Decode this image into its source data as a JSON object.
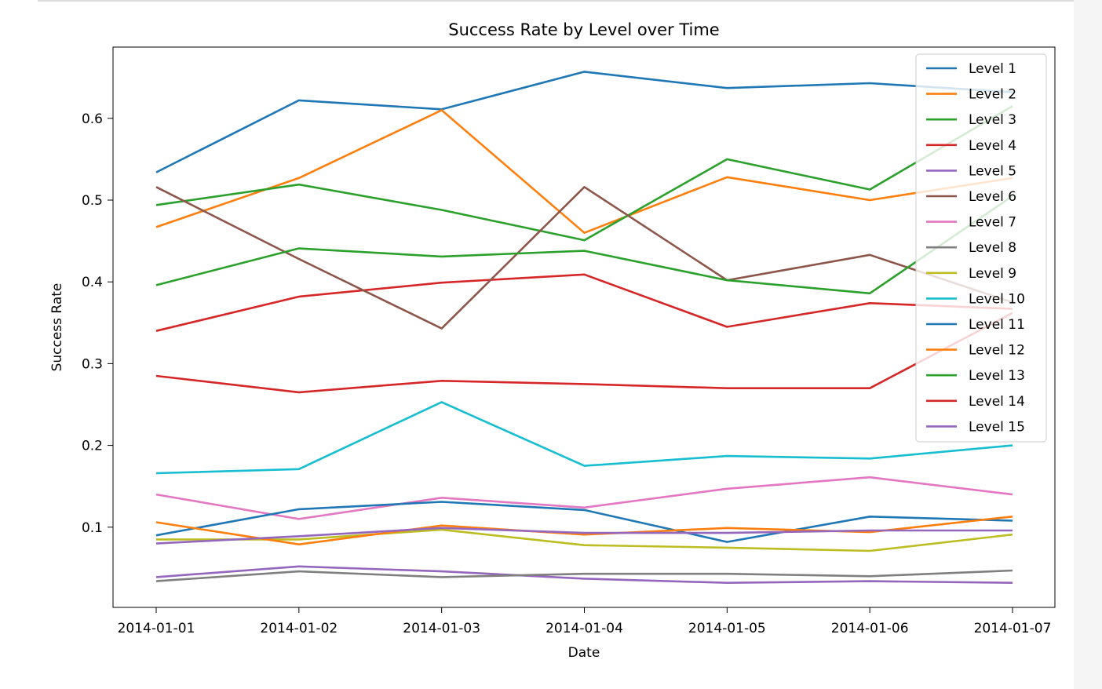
{
  "chart_data": {
    "type": "line",
    "title": "Success Rate by Level over Time",
    "xlabel": "Date",
    "ylabel": "Success Rate",
    "x": [
      "2014-01-01",
      "2014-01-02",
      "2014-01-03",
      "2014-01-04",
      "2014-01-05",
      "2014-01-06",
      "2014-01-07"
    ],
    "xlim": [
      "2014-01-01",
      "2014-01-07"
    ],
    "ylim": [
      0.0,
      0.68
    ],
    "yticks": [
      0.1,
      0.2,
      0.3,
      0.4,
      0.5,
      0.6
    ],
    "grid": false,
    "legend_position": "top-right",
    "series": [
      {
        "name": "Level 1",
        "color": "#1f77b4",
        "values": [
          0.534,
          0.622,
          0.611,
          0.657,
          0.637,
          0.643,
          0.632
        ]
      },
      {
        "name": "Level 2",
        "color": "#ff7f0e",
        "values": [
          0.467,
          0.527,
          0.61,
          0.46,
          0.528,
          0.5,
          0.527
        ]
      },
      {
        "name": "Level 3",
        "color": "#2ca02c",
        "values": [
          0.494,
          0.519,
          0.488,
          0.451,
          0.55,
          0.513,
          0.615
        ]
      },
      {
        "name": "Level 4",
        "color": "#d62728",
        "values": [
          0.34,
          0.382,
          0.399,
          0.409,
          0.345,
          0.374,
          0.367
        ]
      },
      {
        "name": "Level 5",
        "color": "#9467bd",
        "values": [
          0.039,
          0.052,
          0.046,
          0.037,
          0.032,
          0.034,
          0.032
        ]
      },
      {
        "name": "Level 6",
        "color": "#8c564b",
        "values": [
          0.516,
          0.428,
          0.343,
          0.516,
          0.402,
          0.433,
          0.375
        ]
      },
      {
        "name": "Level 7",
        "color": "#e377c2",
        "values": [
          0.14,
          0.11,
          0.136,
          0.124,
          0.147,
          0.161,
          0.14
        ]
      },
      {
        "name": "Level 8",
        "color": "#7f7f7f",
        "values": [
          0.034,
          0.046,
          0.039,
          0.043,
          0.043,
          0.04,
          0.047
        ]
      },
      {
        "name": "Level 9",
        "color": "#bcbd22",
        "values": [
          0.085,
          0.085,
          0.097,
          0.078,
          0.075,
          0.071,
          0.091
        ]
      },
      {
        "name": "Level 10",
        "color": "#17becf",
        "values": [
          0.166,
          0.171,
          0.253,
          0.175,
          0.187,
          0.184,
          0.2
        ]
      },
      {
        "name": "Level 11",
        "color": "#1f77b4",
        "values": [
          0.09,
          0.122,
          0.131,
          0.121,
          0.082,
          0.113,
          0.108
        ]
      },
      {
        "name": "Level 12",
        "color": "#ff7f0e",
        "values": [
          0.106,
          0.079,
          0.102,
          0.091,
          0.099,
          0.094,
          0.113
        ]
      },
      {
        "name": "Level 13",
        "color": "#2ca02c",
        "values": [
          0.396,
          0.441,
          0.431,
          0.438,
          0.402,
          0.386,
          0.505
        ]
      },
      {
        "name": "Level 14",
        "color": "#d62728",
        "values": [
          0.285,
          0.265,
          0.279,
          0.275,
          0.27,
          0.27,
          0.362
        ]
      },
      {
        "name": "Level 15",
        "color": "#9467bd",
        "values": [
          0.08,
          0.089,
          0.099,
          0.093,
          0.093,
          0.096,
          0.096
        ]
      }
    ]
  }
}
